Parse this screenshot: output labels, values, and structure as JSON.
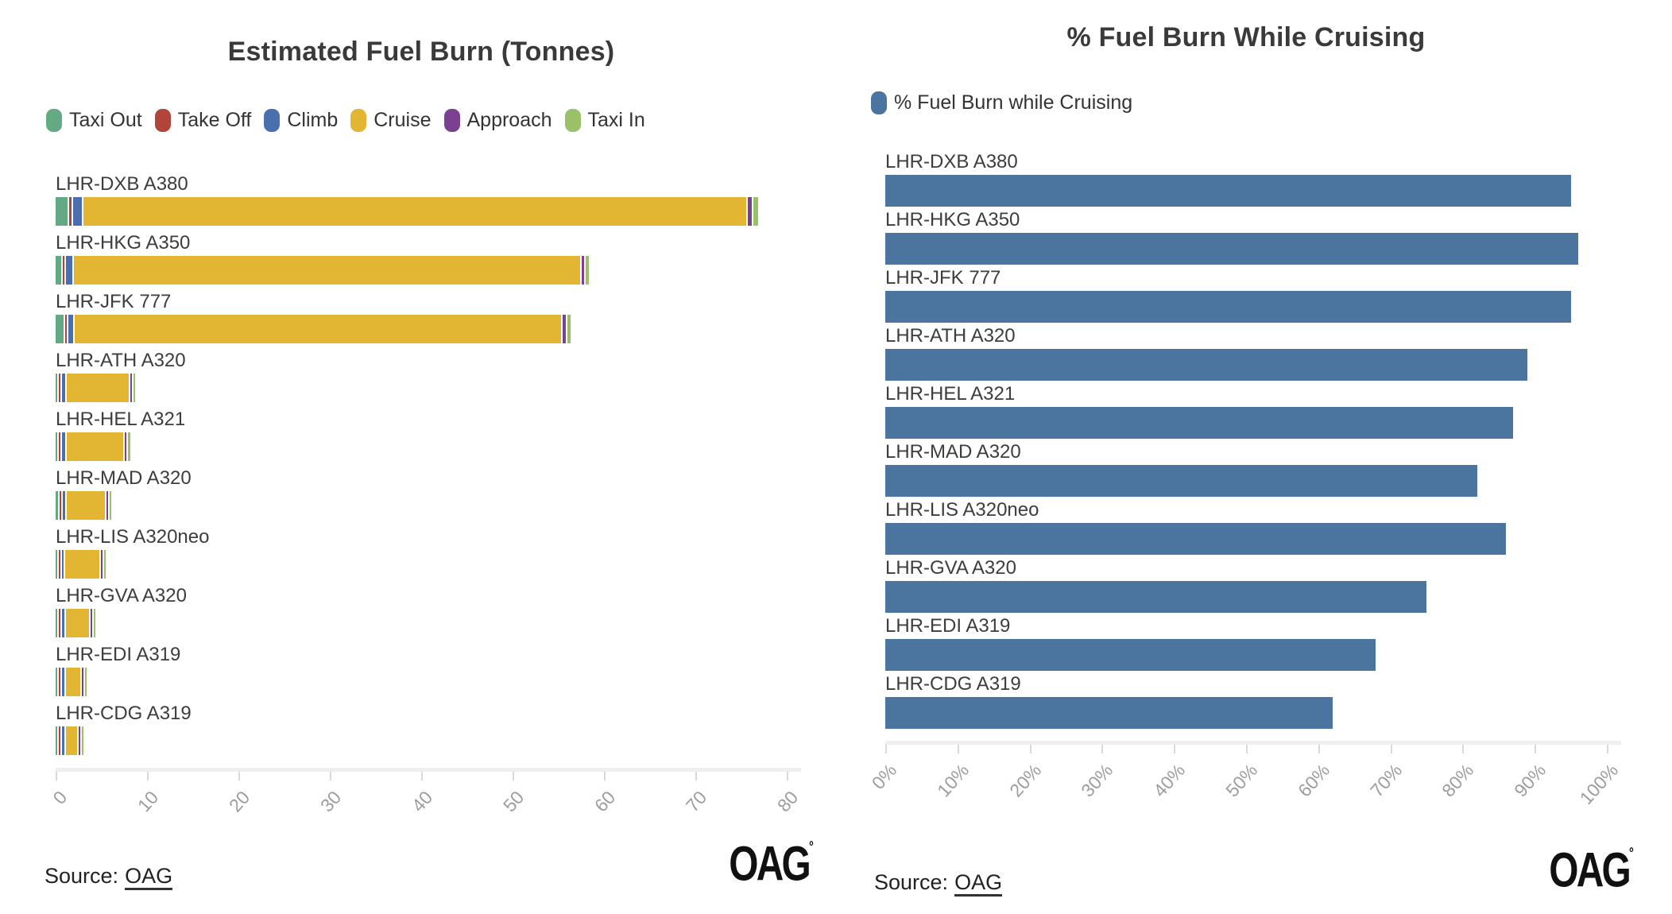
{
  "footer": {
    "source_label": "Source:",
    "source_link": "OAG",
    "logo": "OAG",
    "logo_mark": "°"
  },
  "colors": {
    "taxi_out": "#63a983",
    "take_off": "#b0453c",
    "climb": "#4b6fae",
    "cruise": "#e2b633",
    "approach": "#7a4193",
    "taxi_in": "#9ac06a",
    "cruise_pct_bar": "#4b749f",
    "title_text": "#3a3a3a",
    "tick_text": "#9d9d9d"
  },
  "chart_data": [
    {
      "type": "bar",
      "orientation": "horizontal",
      "stacked": true,
      "title": "Estimated Fuel Burn (Tonnes)",
      "xlabel": "",
      "ylabel": "",
      "xlim": [
        0,
        80
      ],
      "x_ticks": [
        "0",
        "10",
        "20",
        "30",
        "40",
        "50",
        "60",
        "70",
        "80"
      ],
      "grid": false,
      "legend_position": "top-left",
      "categories": [
        "LHR-DXB A380",
        "LHR-HKG A350",
        "LHR-JFK 777",
        "LHR-ATH A320",
        "LHR-HEL A321",
        "LHR-MAD A320",
        "LHR-LIS A320neo",
        "LHR-GVA A320",
        "LHR-EDI A319",
        "LHR-CDG A319"
      ],
      "series": [
        {
          "name": "Taxi Out",
          "color": "#63a983",
          "values": [
            1.3,
            0.6,
            0.85,
            0.2,
            0.2,
            0.22,
            0.15,
            0.2,
            0.2,
            0.2
          ]
        },
        {
          "name": "Take Off",
          "color": "#b0453c",
          "values": [
            0.25,
            0.15,
            0.2,
            0.08,
            0.08,
            0.08,
            0.06,
            0.07,
            0.07,
            0.07
          ]
        },
        {
          "name": "Climb",
          "color": "#4b6fae",
          "values": [
            1.0,
            0.7,
            0.55,
            0.3,
            0.3,
            0.3,
            0.2,
            0.25,
            0.22,
            0.2
          ]
        },
        {
          "name": "Cruise",
          "color": "#e2b633",
          "values": [
            72.5,
            55.4,
            53.2,
            6.8,
            6.2,
            4.15,
            3.7,
            2.5,
            1.6,
            1.27
          ]
        },
        {
          "name": "Approach",
          "color": "#7a4193",
          "values": [
            0.45,
            0.3,
            0.3,
            0.12,
            0.12,
            0.12,
            0.1,
            0.12,
            0.12,
            0.12
          ]
        },
        {
          "name": "Taxi In",
          "color": "#9ac06a",
          "values": [
            0.5,
            0.3,
            0.35,
            0.15,
            0.22,
            0.18,
            0.09,
            0.16,
            0.14,
            0.19
          ]
        }
      ]
    },
    {
      "type": "bar",
      "orientation": "horizontal",
      "stacked": false,
      "title": "% Fuel Burn While Cruising",
      "legend_label": "% Fuel Burn while Cruising",
      "color": "#4b749f",
      "xlabel": "",
      "ylabel": "",
      "xlim": [
        0,
        100
      ],
      "x_ticks": [
        "0%",
        "10%",
        "20%",
        "30%",
        "40%",
        "50%",
        "60%",
        "70%",
        "80%",
        "90%",
        "100%"
      ],
      "grid": false,
      "legend_position": "top-left",
      "categories": [
        "LHR-DXB A380",
        "LHR-HKG A350",
        "LHR-JFK 777",
        "LHR-ATH A320",
        "LHR-HEL A321",
        "LHR-MAD A320",
        "LHR-LIS A320neo",
        "LHR-GVA A320",
        "LHR-EDI A319",
        "LHR-CDG A319"
      ],
      "values": [
        95,
        96,
        95,
        89,
        87,
        82,
        86,
        75,
        68,
        62
      ]
    }
  ]
}
